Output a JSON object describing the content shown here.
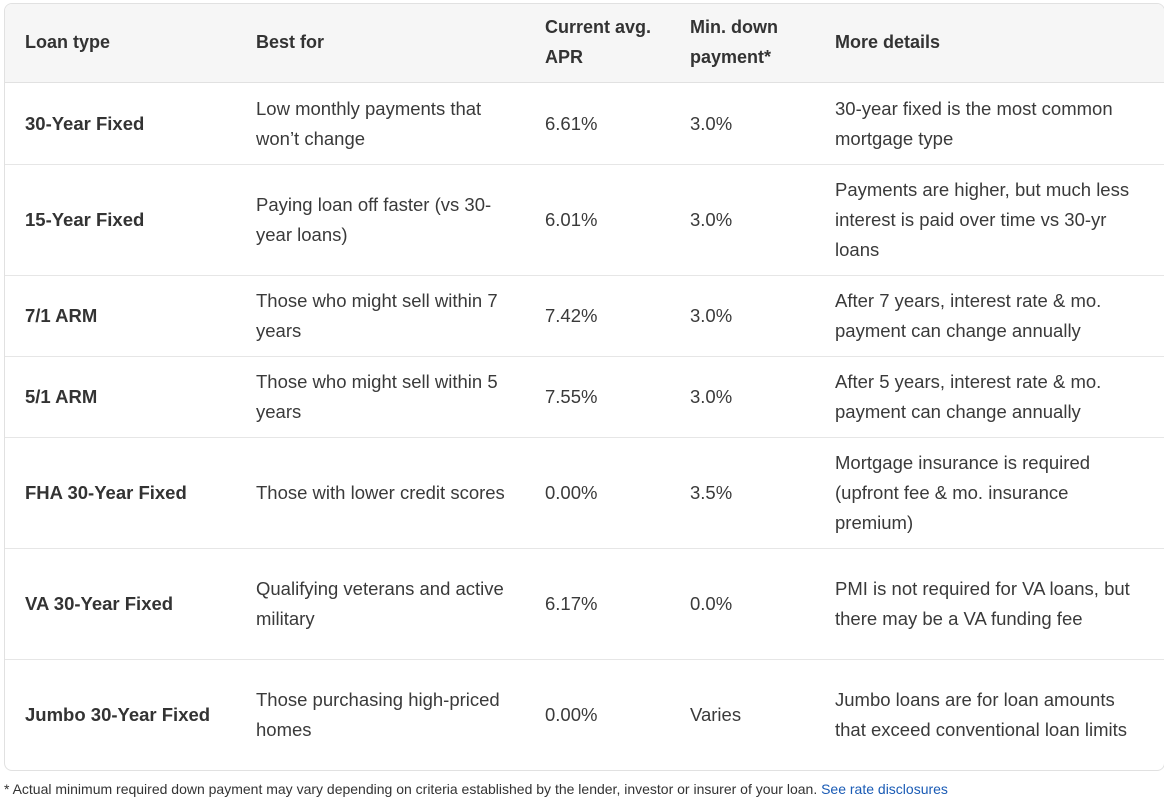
{
  "headers": {
    "loan_type": "Loan type",
    "best_for": "Best for",
    "apr": "Current avg. APR",
    "down": "Min. down payment*",
    "details": "More details"
  },
  "rows": [
    {
      "loan_type": "30-Year Fixed",
      "best_for": "Low monthly payments that won’t change",
      "apr": "6.61%",
      "down": "3.0%",
      "details": "30-year fixed is the most common mortgage type"
    },
    {
      "loan_type": "15-Year Fixed",
      "best_for": "Paying loan off faster (vs 30-year loans)",
      "apr": "6.01%",
      "down": "3.0%",
      "details": "Payments are higher, but much less interest is paid over time vs 30-yr loans"
    },
    {
      "loan_type": "7/1 ARM",
      "best_for": "Those who might sell within 7 years",
      "apr": "7.42%",
      "down": "3.0%",
      "details": "After 7 years, interest rate & mo. payment can change annually"
    },
    {
      "loan_type": "5/1 ARM",
      "best_for": "Those who might sell within 5 years",
      "apr": "7.55%",
      "down": "3.0%",
      "details": "After 5 years, interest rate & mo. payment can change annually"
    },
    {
      "loan_type": "FHA 30-Year Fixed",
      "best_for": "Those with lower credit scores",
      "apr": "0.00%",
      "down": "3.5%",
      "details": "Mortgage insurance is required (upfront fee & mo. insurance premium)"
    },
    {
      "loan_type": "VA 30-Year Fixed",
      "best_for": "Qualifying veterans and active military",
      "apr": "6.17%",
      "down": "0.0%",
      "details": "PMI is not required for VA loans, but there may be a VA funding fee"
    },
    {
      "loan_type": "Jumbo 30-Year Fixed",
      "best_for": "Those purchasing high-priced homes",
      "apr": "0.00%",
      "down": "Varies",
      "details": "Jumbo loans are for loan amounts that exceed conventional loan limits"
    }
  ],
  "footnote": {
    "text": "* Actual minimum required down payment may vary depending on criteria established by the lender, investor or insurer of your loan.",
    "link": "See rate disclosures"
  },
  "colors": {
    "header_bg": "#f6f6f6",
    "border": "#e1e1e1",
    "link": "#1a5bb5",
    "text": "#333333"
  }
}
